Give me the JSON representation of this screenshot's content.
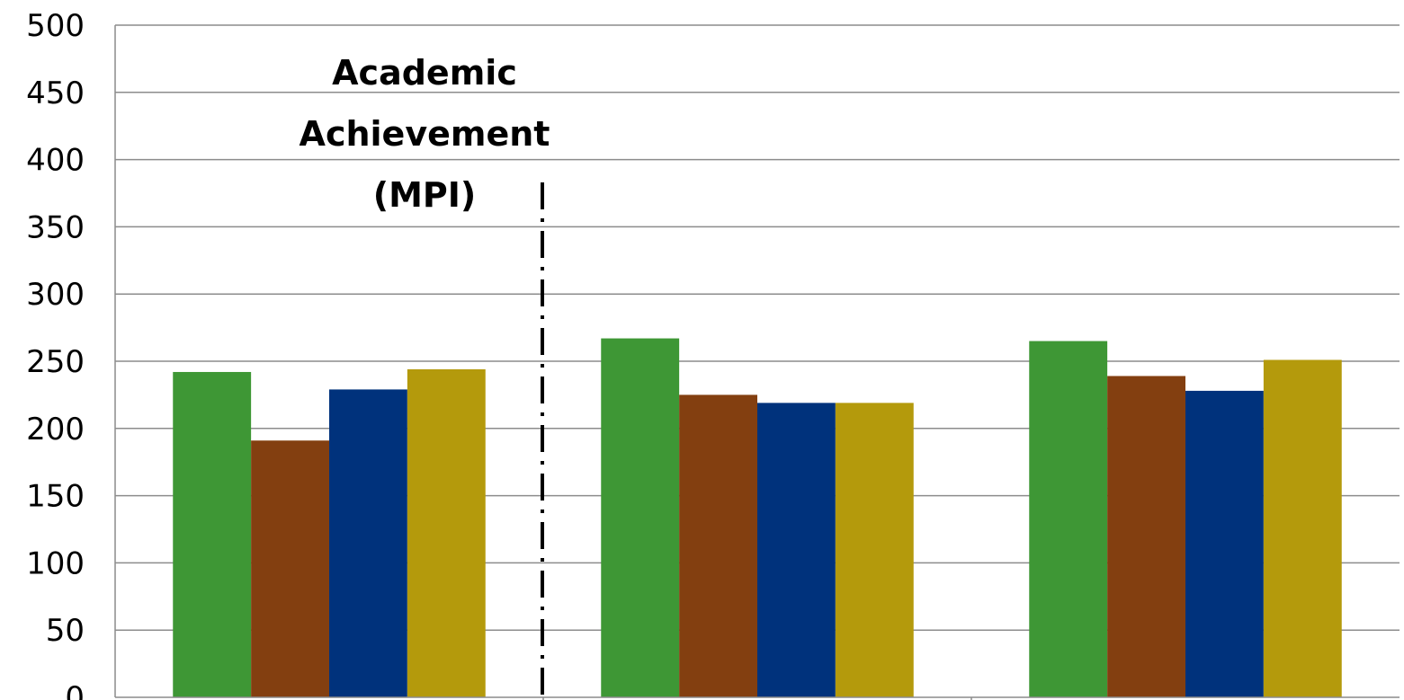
{
  "chart_data": {
    "type": "bar",
    "title": "",
    "xlabel": "",
    "ylabel": "",
    "ylim": [
      0,
      500
    ],
    "yticks": [
      "0",
      "50",
      "100",
      "150",
      "200",
      "250",
      "300",
      "350",
      "400",
      "450",
      "500"
    ],
    "grid": true,
    "legend": "none",
    "categories": [
      "",
      "",
      ""
    ],
    "series": [
      {
        "color": "#3e9735",
        "values": [
          242,
          267,
          265
        ]
      },
      {
        "color": "#833f10",
        "values": [
          191,
          225,
          239
        ]
      },
      {
        "color": "#00327c",
        "values": [
          229,
          219,
          228
        ]
      },
      {
        "color": "#b49a0c",
        "values": [
          244,
          219,
          251
        ]
      }
    ],
    "annotations": [
      {
        "lines": [
          "Academic",
          "Achievement",
          "(MPI)"
        ]
      }
    ]
  }
}
